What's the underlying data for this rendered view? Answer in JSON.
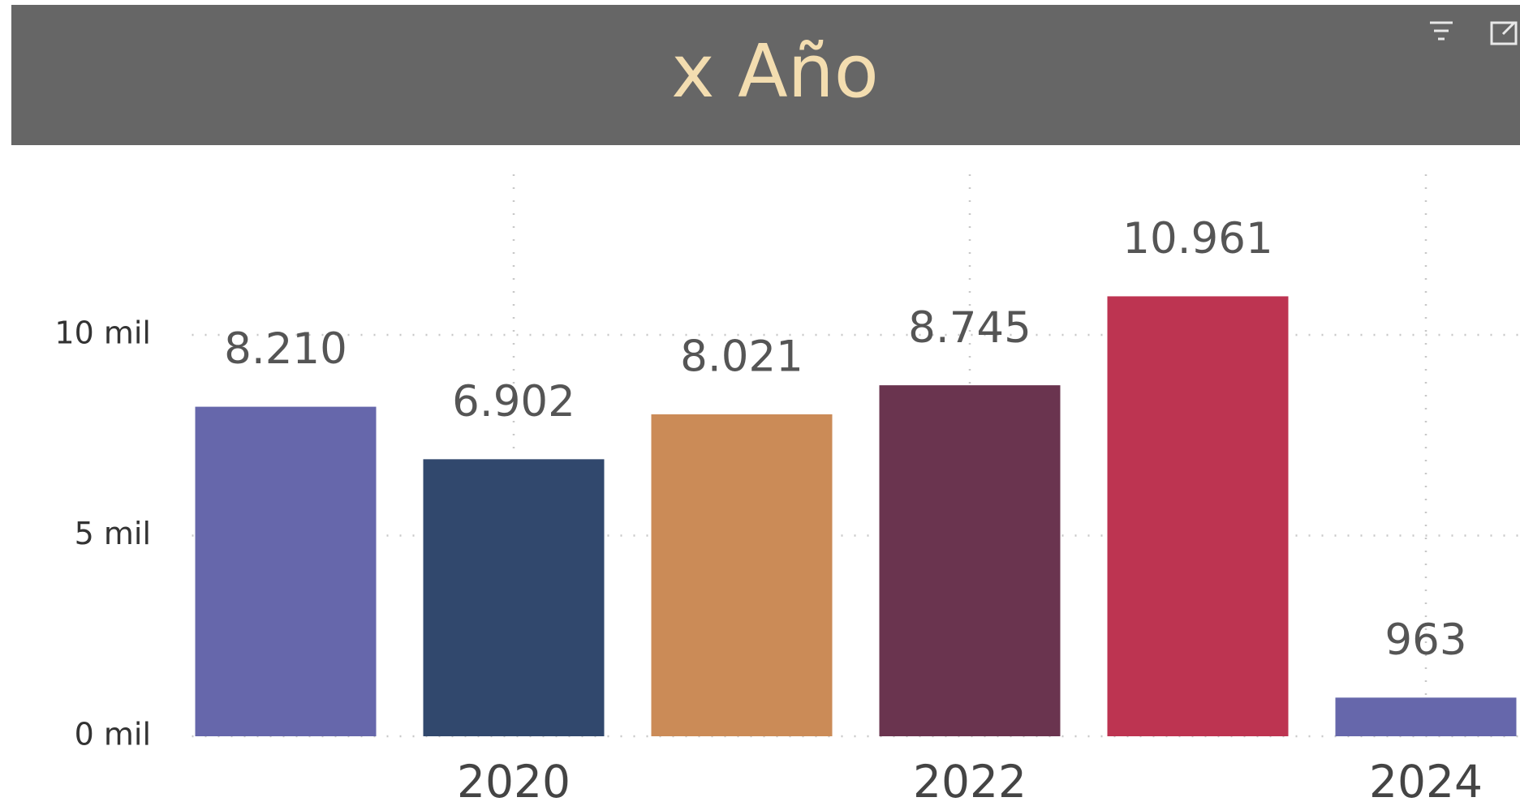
{
  "chart_data": {
    "type": "bar",
    "title": "x Año",
    "categories": [
      null,
      "2020",
      null,
      "2022",
      null,
      "2024"
    ],
    "values": [
      8210,
      6902,
      8021,
      8745,
      10961,
      963
    ],
    "value_labels": [
      "8.210",
      "6.902",
      "8.021",
      "8.745",
      "10.961",
      "963"
    ],
    "colors": [
      "#6667ab",
      "#31486d",
      "#cb8b57",
      "#6a344f",
      "#bd3451",
      "#6667ab"
    ],
    "ylim": [
      0,
      14000
    ],
    "yticks": [
      {
        "value": 0,
        "label": "0 mil"
      },
      {
        "value": 5000,
        "label": "5 mil"
      },
      {
        "value": 10000,
        "label": "10 mil"
      }
    ],
    "grid": true
  }
}
